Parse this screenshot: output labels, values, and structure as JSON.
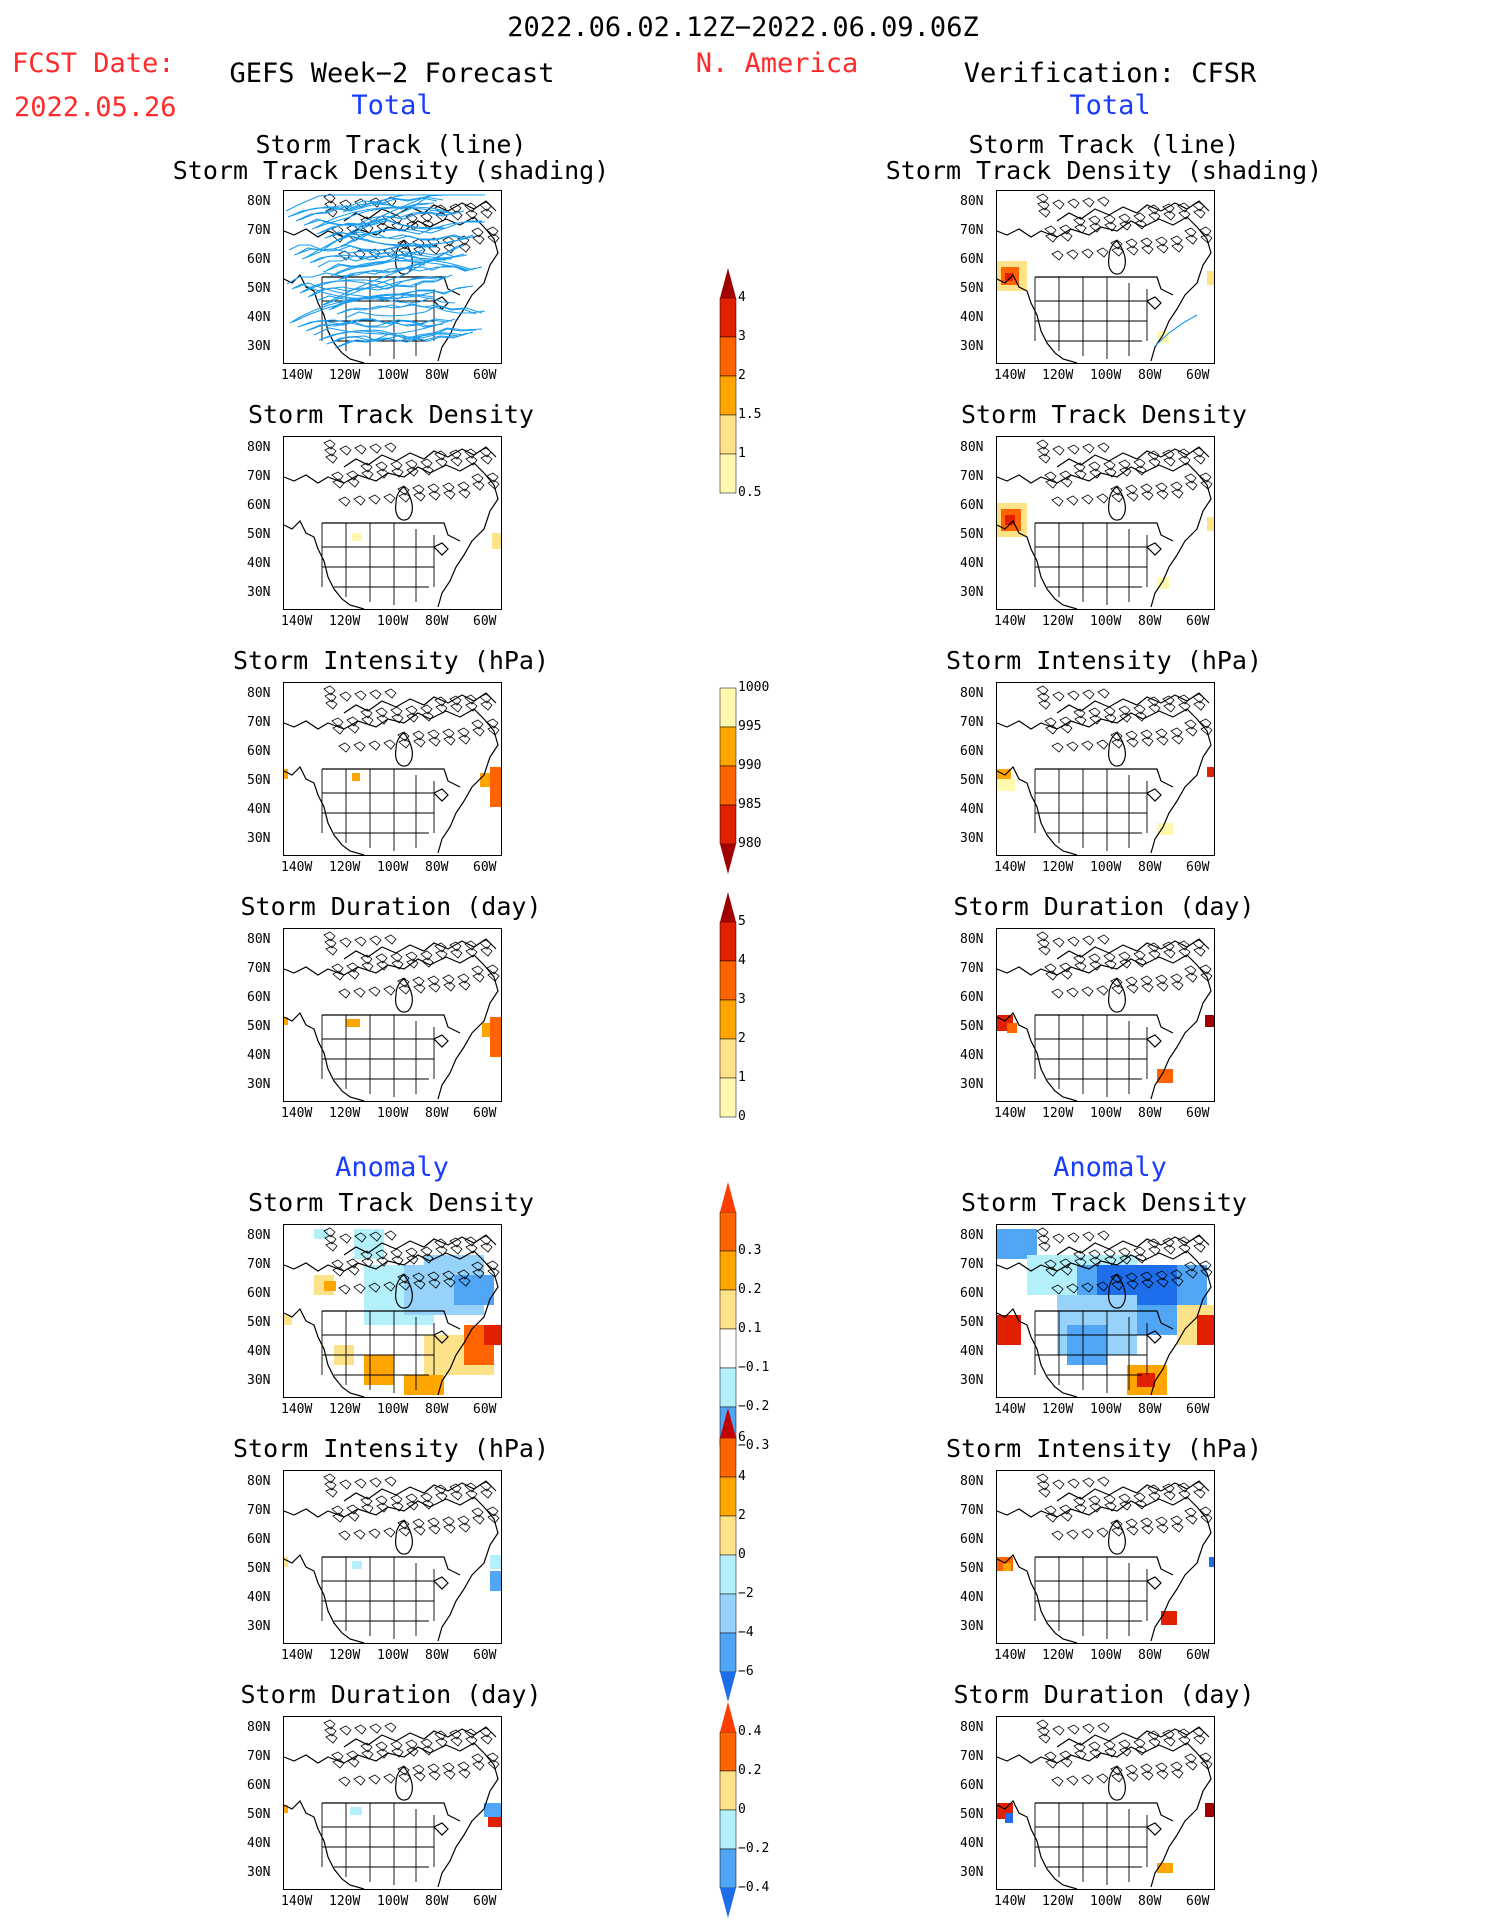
{
  "header": {
    "date_range": "2022.06.02.12Z−2022.06.09.06Z",
    "region": "N. America",
    "fcst_label": "FCST Date:",
    "fcst_date": "2022.05.26",
    "left_title": "GEFS Week−2 Forecast",
    "right_title": "Verification: CFSR",
    "total_label": "Total",
    "anomaly_label": "Anomaly"
  },
  "panel_titles": {
    "track_line": "Storm Track (line)",
    "track_density_shading": "Storm Track Density (shading)",
    "density": "Storm Track Density",
    "intensity": "Storm Intensity (hPa)",
    "duration": "Storm Duration (day)"
  },
  "axes": {
    "lat_labels": [
      "80N",
      "70N",
      "60N",
      "50N",
      "40N",
      "30N"
    ],
    "lon_labels": [
      "140W",
      "120W",
      "100W",
      "80W",
      "60W"
    ]
  },
  "colorbars": {
    "density_total": [
      "4",
      "3",
      "2",
      "1.5",
      "1",
      "0.5"
    ],
    "intensity_total": [
      "1000",
      "995",
      "990",
      "985",
      "980"
    ],
    "duration_total": [
      "5",
      "4",
      "3",
      "2",
      "1",
      "0"
    ],
    "density_anom": [
      "0.3",
      "0.2",
      "0.1",
      "−0.1",
      "−0.2",
      "−0.3"
    ],
    "intensity_anom": [
      "6",
      "4",
      "2",
      "0",
      "−2",
      "−4",
      "−6"
    ],
    "duration_anom": [
      "0.4",
      "0.2",
      "0",
      "−0.2",
      "−0.4"
    ]
  },
  "colors": {
    "warm": [
      "#fff9b0",
      "#fde28a",
      "#ffa500",
      "#ff6400",
      "#e02000",
      "#a00000"
    ],
    "cold": [
      "#b4f0fa",
      "#96d2fa",
      "#50a5f5",
      "#1e6eeb"
    ],
    "track": "#1a9cf0",
    "title_red": "#ff2a2a",
    "title_blue": "#1a3cff"
  }
}
